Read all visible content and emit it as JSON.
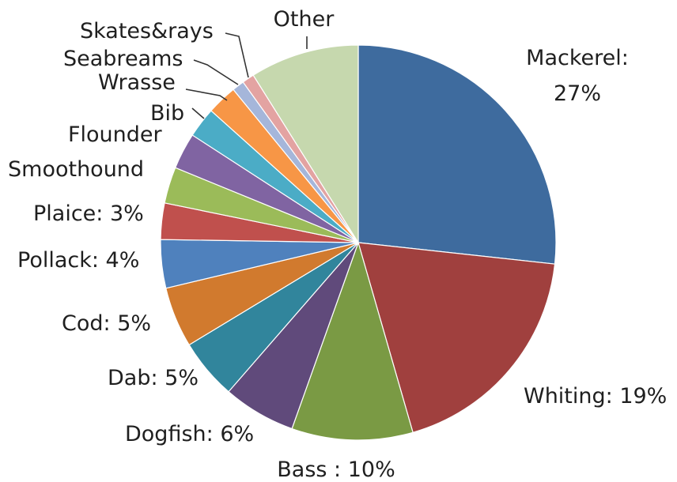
{
  "chart_data": {
    "type": "pie",
    "title": "",
    "start_angle": "12 o'clock",
    "direction": "clockwise",
    "slices": [
      {
        "name": "Mackerel",
        "value": 27,
        "label": "Mackerel:",
        "label2": "27%",
        "color": "#3E6B9E"
      },
      {
        "name": "Whiting",
        "value": 19,
        "label": "Whiting: 19%",
        "color": "#A0403E"
      },
      {
        "name": "Bass",
        "value": 10,
        "label": "Bass : 10%",
        "color": "#7A9A44"
      },
      {
        "name": "Dogfish",
        "value": 6,
        "label": "Dogfish: 6%",
        "color": "#604A7B"
      },
      {
        "name": "Dab",
        "value": 5,
        "label": "Dab: 5%",
        "color": "#31859C"
      },
      {
        "name": "Cod",
        "value": 5,
        "label": "Cod: 5%",
        "color": "#D17A2E"
      },
      {
        "name": "Pollack",
        "value": 4,
        "label": "Pollack: 4%",
        "color": "#4F81BD"
      },
      {
        "name": "Plaice",
        "value": 3,
        "label": "Plaice: 3%",
        "color": "#C0504D"
      },
      {
        "name": "Smoothound",
        "value": 3,
        "label": "Smoothound",
        "color": "#9BBB59"
      },
      {
        "name": "Flounder",
        "value": 3,
        "label": "Flounder",
        "color": "#8064A2"
      },
      {
        "name": "Bib",
        "value": 2.5,
        "label": "Bib",
        "color": "#4BACC6"
      },
      {
        "name": "Wrasse",
        "value": 2.5,
        "label": "Wrasse",
        "color": "#F79646"
      },
      {
        "name": "Seabreams",
        "value": 1,
        "label": "Seabreams",
        "color": "#A5B6DA"
      },
      {
        "name": "Skates&rays",
        "value": 1,
        "label": "Skates&rays",
        "color": "#E3A3A2"
      },
      {
        "name": "Other",
        "value": 9,
        "label": "Other",
        "color": "#C6D8AE"
      }
    ]
  }
}
